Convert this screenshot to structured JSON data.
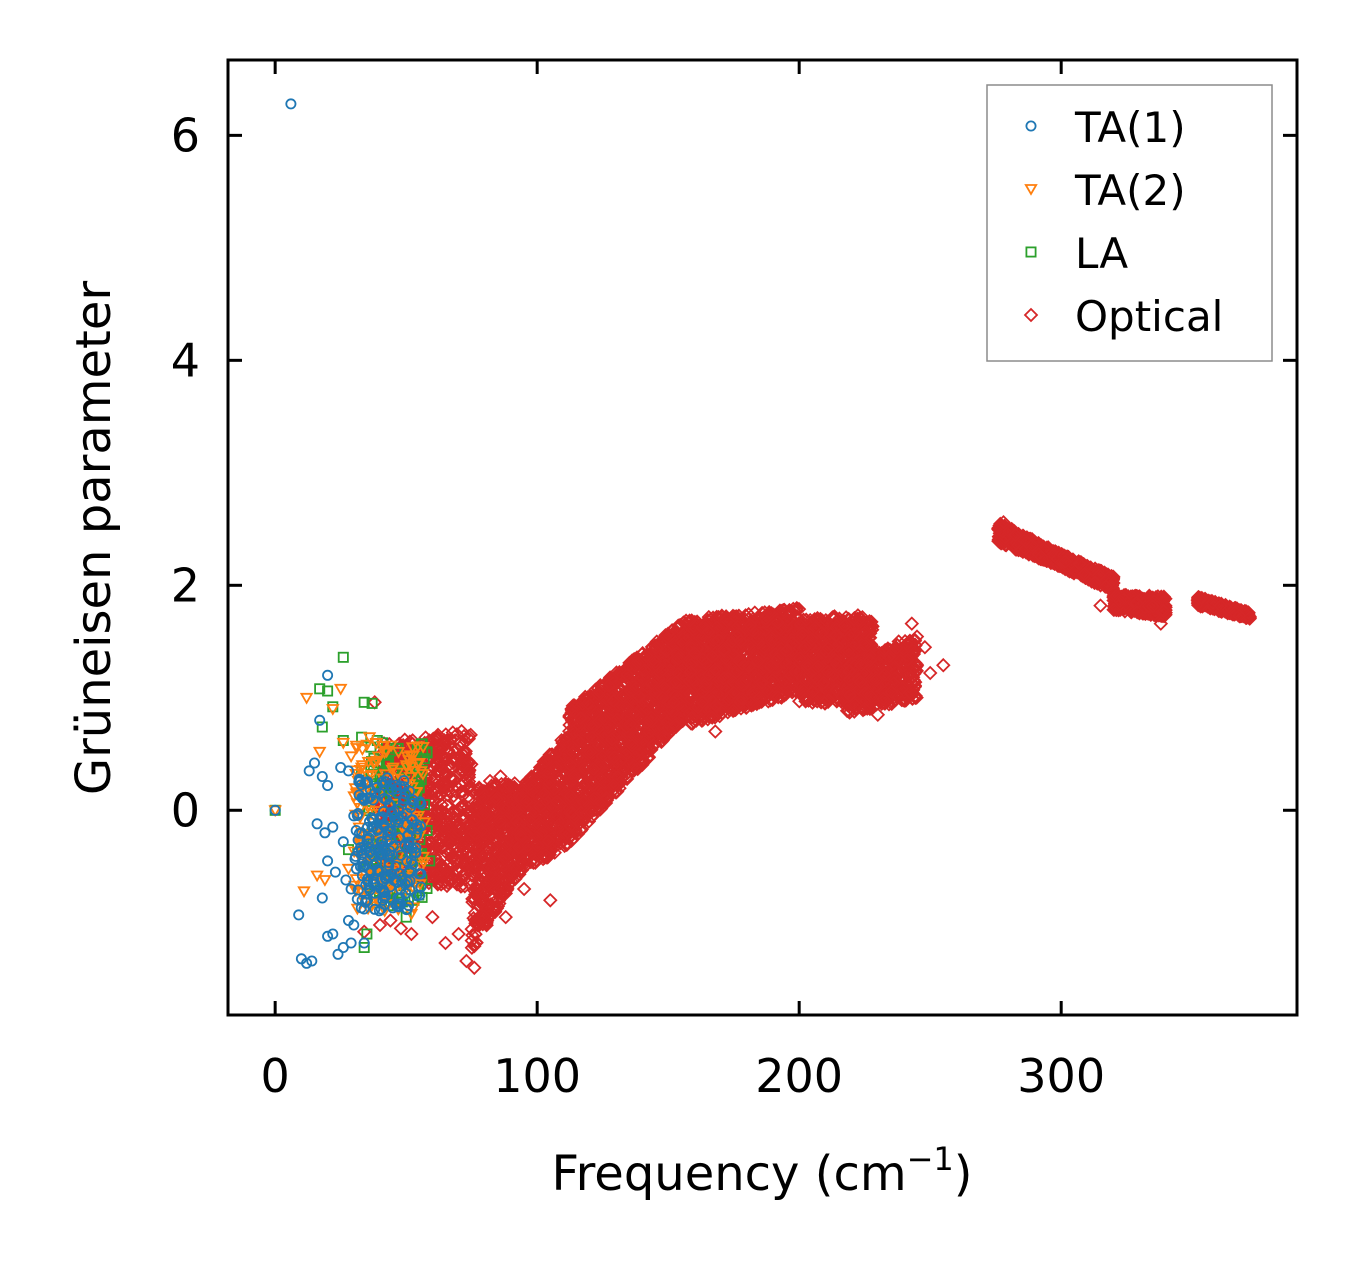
{
  "chart_data": {
    "type": "scatter",
    "title": "",
    "xlabel": "Frequency (cm",
    "xlabel_exponent": "−1",
    "xlabel_close": ")",
    "ylabel": "Grüneisen parameter",
    "xlim": [
      -18,
      390
    ],
    "ylim": [
      -1.82,
      6.67
    ],
    "xticks": [
      0,
      100,
      200,
      300
    ],
    "yticks": [
      0,
      2,
      4,
      6
    ],
    "xtick_labels": [
      "0",
      "100",
      "200",
      "300"
    ],
    "ytick_labels": [
      "0",
      "2",
      "4",
      "6"
    ],
    "legend_position": "top-right",
    "series": [
      {
        "name": "TA(1)",
        "marker": "circle",
        "color": "#1f77b4",
        "points": [
          [
            6,
            6.28
          ],
          [
            0,
            0
          ],
          [
            20,
            1.2
          ],
          [
            17,
            0.8
          ],
          [
            13,
            0.35
          ],
          [
            15,
            0.42
          ],
          [
            18,
            0.3
          ],
          [
            20,
            0.22
          ],
          [
            25,
            0.38
          ],
          [
            28,
            0.35
          ],
          [
            16,
            -0.12
          ],
          [
            19,
            -0.2
          ],
          [
            22,
            -0.15
          ],
          [
            26,
            -0.28
          ],
          [
            30,
            -0.05
          ],
          [
            20,
            -0.45
          ],
          [
            23,
            -0.55
          ],
          [
            27,
            -0.62
          ],
          [
            29,
            -0.7
          ],
          [
            18,
            -0.78
          ],
          [
            9,
            -0.93
          ],
          [
            28,
            -0.98
          ],
          [
            30,
            -1.02
          ],
          [
            20,
            -1.12
          ],
          [
            22,
            -1.1
          ],
          [
            26,
            -1.22
          ],
          [
            29,
            -1.18
          ],
          [
            34,
            -1.18
          ],
          [
            10,
            -1.32
          ],
          [
            12,
            -1.36
          ],
          [
            14,
            -1.34
          ],
          [
            24,
            -1.28
          ],
          [
            31,
            -0.52
          ],
          [
            35,
            -0.32
          ],
          [
            33,
            -0.2
          ],
          [
            36,
            -0.1
          ],
          [
            38,
            0.15
          ],
          [
            40,
            -0.4
          ],
          [
            42,
            -0.6
          ],
          [
            38,
            -0.88
          ],
          [
            44,
            -0.68
          ],
          [
            46,
            -0.5
          ],
          [
            43,
            -0.22
          ],
          [
            47,
            -0.08
          ],
          [
            49,
            0.1
          ],
          [
            51,
            -0.3
          ],
          [
            52,
            -0.45
          ],
          [
            36,
            -0.38
          ],
          [
            41,
            -0.28
          ],
          [
            45,
            -0.32
          ],
          [
            39,
            -0.18
          ],
          [
            48,
            -0.4
          ]
        ],
        "cluster": {
          "x": [
            30,
            56
          ],
          "y": [
            -0.9,
            0.3
          ],
          "count": 200
        }
      },
      {
        "name": "TA(2)",
        "marker": "triangle-down",
        "color": "#ff7f0e",
        "points": [
          [
            0,
            0
          ],
          [
            12,
            1.0
          ],
          [
            17,
            0.52
          ],
          [
            22,
            0.9
          ],
          [
            25,
            1.08
          ],
          [
            26,
            0.6
          ],
          [
            29,
            0.48
          ],
          [
            31,
            0.15
          ],
          [
            33,
            0.38
          ],
          [
            36,
            0.65
          ],
          [
            39,
            0.44
          ],
          [
            42,
            0.32
          ],
          [
            45,
            0.38
          ],
          [
            49,
            0.26
          ],
          [
            11,
            -0.72
          ],
          [
            16,
            -0.58
          ],
          [
            19,
            -0.62
          ],
          [
            28,
            -0.52
          ],
          [
            33,
            -0.72
          ],
          [
            36,
            -0.42
          ],
          [
            40,
            -0.82
          ],
          [
            44,
            -0.68
          ],
          [
            47,
            -0.88
          ],
          [
            52,
            -0.92
          ],
          [
            50,
            -0.6
          ]
        ],
        "cluster": {
          "x": [
            30,
            57
          ],
          "y": [
            -0.9,
            0.6
          ],
          "count": 160
        }
      },
      {
        "name": "LA",
        "marker": "square",
        "color": "#2ca02c",
        "points": [
          [
            0,
            0
          ],
          [
            26,
            1.36
          ],
          [
            17,
            1.08
          ],
          [
            20,
            1.06
          ],
          [
            22,
            0.92
          ],
          [
            34,
            0.96
          ],
          [
            37,
            0.95
          ],
          [
            18,
            0.74
          ],
          [
            26,
            0.62
          ],
          [
            33,
            0.65
          ],
          [
            39,
            0.62
          ],
          [
            41,
            0.6
          ],
          [
            46,
            0.55
          ],
          [
            51,
            0.4
          ],
          [
            33,
            0.35
          ],
          [
            55,
            0.2
          ],
          [
            57,
            0.05
          ],
          [
            58,
            -0.18
          ],
          [
            59,
            -0.45
          ],
          [
            56,
            -0.62
          ],
          [
            53,
            -0.8
          ],
          [
            50,
            -0.95
          ],
          [
            34,
            -1.22
          ],
          [
            35,
            -1.1
          ],
          [
            28,
            -0.35
          ],
          [
            44,
            -0.18
          ]
        ],
        "cluster": {
          "x": [
            35,
            58
          ],
          "y": [
            -0.85,
            0.6
          ],
          "count": 120
        }
      },
      {
        "name": "Optical",
        "marker": "diamond",
        "color": "#d62728",
        "points": [
          [
            38,
            0.96
          ],
          [
            73,
            -1.34
          ],
          [
            76,
            -1.4
          ],
          [
            70,
            -1.1
          ],
          [
            82,
            0.26
          ],
          [
            86,
            0.3
          ],
          [
            255,
            1.29
          ],
          [
            248,
            1.45
          ],
          [
            243,
            1.66
          ],
          [
            238,
            1.5
          ],
          [
            250,
            1.22
          ],
          [
            372,
            1.71
          ],
          [
            368,
            1.73
          ],
          [
            338,
            1.66
          ],
          [
            315,
            1.82
          ],
          [
            278,
            2.56
          ],
          [
            34,
            -1.08
          ],
          [
            40,
            -1.02
          ],
          [
            44,
            -0.98
          ],
          [
            48,
            -1.05
          ],
          [
            52,
            -1.1
          ],
          [
            60,
            -0.95
          ],
          [
            65,
            -1.18
          ],
          [
            95,
            -0.7
          ],
          [
            105,
            -0.8
          ],
          [
            185,
            1.0
          ],
          [
            168,
            0.7
          ],
          [
            225,
            0.9
          ],
          [
            230,
            0.85
          ],
          [
            88,
            -0.95
          ]
        ],
        "bands": [
          {
            "x": [
              40,
              75
            ],
            "ylo": [
              -0.6,
              -0.7
            ],
            "yhi": [
              0.6,
              0.72
            ],
            "count": 700
          },
          {
            "x": [
              75,
              92
            ],
            "ylo": [
              -1.25,
              -0.6
            ],
            "yhi": [
              0.2,
              0.25
            ],
            "count": 500
          },
          {
            "x": [
              92,
              112
            ],
            "ylo": [
              -0.6,
              -0.3
            ],
            "yhi": [
              0.15,
              0.7
            ],
            "count": 500
          },
          {
            "x": [
              112,
              158
            ],
            "ylo": [
              -0.3,
              0.85
            ],
            "yhi": [
              0.9,
              1.72
            ],
            "count": 1500
          },
          {
            "x": [
              158,
              200
            ],
            "ylo": [
              0.75,
              1.05
            ],
            "yhi": [
              1.7,
              1.8
            ],
            "count": 1200
          },
          {
            "x": [
              200,
              228
            ],
            "ylo": [
              0.95,
              0.95
            ],
            "yhi": [
              1.7,
              1.75
            ],
            "count": 700
          },
          {
            "x": [
              218,
              245
            ],
            "ylo": [
              0.85,
              1.0
            ],
            "yhi": [
              1.3,
              1.55
            ],
            "count": 500
          },
          {
            "x": [
              276,
              300
            ],
            "ylo": [
              2.38,
              2.16
            ],
            "yhi": [
              2.56,
              2.28
            ],
            "count": 400
          },
          {
            "x": [
              300,
              320
            ],
            "ylo": [
              2.16,
              1.94
            ],
            "yhi": [
              2.28,
              2.08
            ],
            "count": 300
          },
          {
            "x": [
              320,
              340
            ],
            "ylo": [
              1.78,
              1.72
            ],
            "yhi": [
              1.92,
              1.9
            ],
            "count": 300
          },
          {
            "x": [
              352,
              372
            ],
            "ylo": [
              1.82,
              1.7
            ],
            "yhi": [
              1.9,
              1.76
            ],
            "count": 250
          }
        ]
      }
    ]
  }
}
